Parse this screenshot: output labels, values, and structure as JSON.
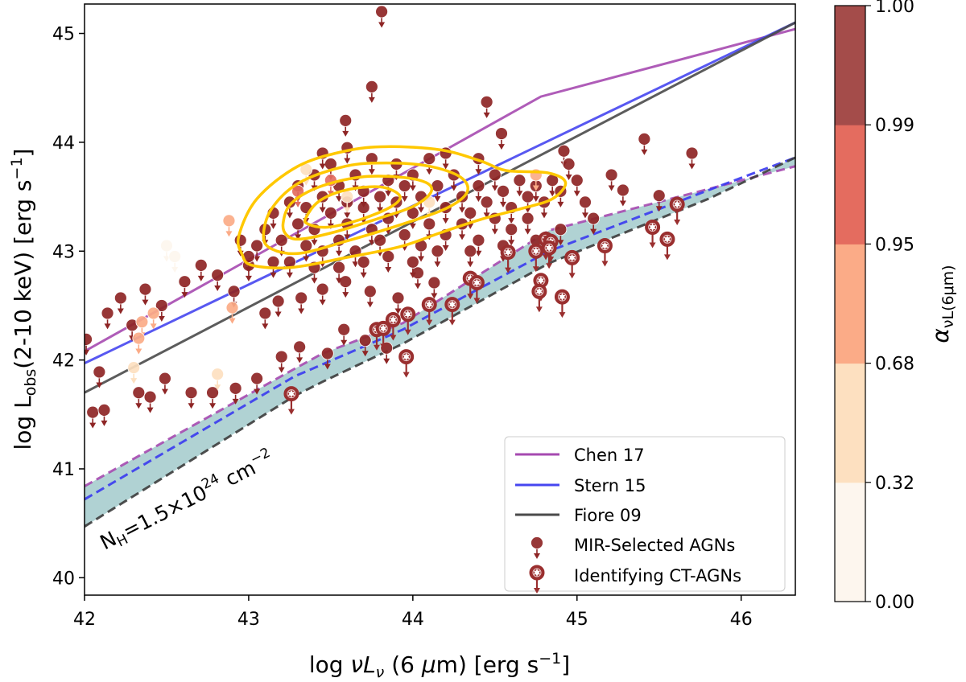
{
  "chart_data": {
    "type": "scatter",
    "xlabel": "log νLν (6 μm) [erg s⁻¹]",
    "ylabel": "log Lobs(2-10 keV) [erg s⁻¹]",
    "xlim": [
      42,
      46.33
    ],
    "ylim": [
      39.84,
      45.27
    ],
    "xticks": [
      "42",
      "43",
      "44",
      "45",
      "46"
    ],
    "yticks": [
      "40",
      "41",
      "42",
      "43",
      "44",
      "45"
    ],
    "grid": false,
    "legend_position": "bottom-right",
    "annotation": "NH=1.5×10²⁴ cm⁻²",
    "relations": [
      {
        "name": "Chen 17",
        "color": "#a64ab0",
        "points": [
          [
            42,
            42.08
          ],
          [
            44.78,
            44.42
          ],
          [
            46.33,
            45.04
          ]
        ]
      },
      {
        "name": "Stern 15",
        "color": "#4646f0",
        "points": [
          [
            42,
            41.97
          ],
          [
            46.33,
            45.1
          ]
        ]
      },
      {
        "name": "Fiore 09",
        "color": "#4a4a4a",
        "points": [
          [
            42,
            41.7
          ],
          [
            46.33,
            45.1
          ]
        ]
      }
    ],
    "ct_threshold_curves": [
      {
        "relation": "Chen 17",
        "color": "#a64ab0",
        "points": [
          [
            42,
            40.84
          ],
          [
            43.28,
            41.92
          ],
          [
            43.45,
            42.06
          ],
          [
            43.94,
            42.34
          ],
          [
            44.83,
            43.19
          ],
          [
            45.8,
            43.57
          ],
          [
            46.33,
            43.78
          ]
        ]
      },
      {
        "relation": "Stern 15",
        "color": "#3a3af0",
        "points": [
          [
            42,
            40.72
          ],
          [
            43.28,
            41.85
          ],
          [
            43.45,
            41.96
          ],
          [
            43.94,
            42.28
          ],
          [
            44.83,
            43.0
          ],
          [
            45.8,
            43.56
          ],
          [
            46.33,
            43.86
          ]
        ]
      },
      {
        "relation": "Fiore 09",
        "color": "#3c3c3c",
        "points": [
          [
            42,
            40.47
          ],
          [
            43.28,
            41.67
          ],
          [
            43.45,
            41.8
          ],
          [
            43.94,
            42.15
          ],
          [
            44.83,
            42.89
          ],
          [
            45.8,
            43.48
          ],
          [
            46.33,
            43.86
          ]
        ]
      }
    ],
    "band_color": "#b0d2d3",
    "contour_color": "#ffc800",
    "contours": [
      [
        [
          42.96,
          42.97
        ],
        [
          42.94,
          43.14
        ],
        [
          43.05,
          43.48
        ],
        [
          43.3,
          43.78
        ],
        [
          43.59,
          43.92
        ],
        [
          43.84,
          43.96
        ],
        [
          44.17,
          43.93
        ],
        [
          44.41,
          43.83
        ],
        [
          44.57,
          43.74
        ],
        [
          44.82,
          43.72
        ],
        [
          44.93,
          43.63
        ],
        [
          44.85,
          43.48
        ],
        [
          44.66,
          43.39
        ],
        [
          44.41,
          43.29
        ],
        [
          44.17,
          43.17
        ],
        [
          43.92,
          43.04
        ],
        [
          43.59,
          42.94
        ],
        [
          43.26,
          42.85
        ],
        [
          43.02,
          42.87
        ]
      ],
      [
        [
          43.09,
          43.14
        ],
        [
          43.14,
          43.39
        ],
        [
          43.31,
          43.63
        ],
        [
          43.59,
          43.78
        ],
        [
          43.84,
          43.81
        ],
        [
          44.1,
          43.78
        ],
        [
          44.29,
          43.68
        ],
        [
          44.33,
          43.54
        ],
        [
          44.2,
          43.39
        ],
        [
          43.92,
          43.24
        ],
        [
          43.59,
          43.09
        ],
        [
          43.31,
          42.98
        ],
        [
          43.14,
          43.02
        ]
      ],
      [
        [
          43.21,
          43.26
        ],
        [
          43.26,
          43.44
        ],
        [
          43.43,
          43.59
        ],
        [
          43.68,
          43.68
        ],
        [
          43.92,
          43.68
        ],
        [
          44.08,
          43.63
        ],
        [
          44.11,
          43.54
        ],
        [
          44.0,
          43.41
        ],
        [
          43.77,
          43.29
        ],
        [
          43.51,
          43.17
        ],
        [
          43.31,
          43.11
        ],
        [
          43.23,
          43.15
        ]
      ],
      [
        [
          43.35,
          43.31
        ],
        [
          43.43,
          43.46
        ],
        [
          43.59,
          43.56
        ],
        [
          43.8,
          43.59
        ],
        [
          43.92,
          43.51
        ],
        [
          43.87,
          43.41
        ],
        [
          43.68,
          43.29
        ],
        [
          43.48,
          43.22
        ],
        [
          43.36,
          43.25
        ]
      ]
    ],
    "colorbar": {
      "label": "α",
      "label_sub": "νL(6μm)",
      "ticks": [
        "0.00",
        "0.32",
        "0.68",
        "0.95",
        "0.99",
        "1.00"
      ],
      "colors": [
        "#fdf6ee",
        "#fde0c0",
        "#fbab87",
        "#e46c5f",
        "#a44c4a"
      ]
    },
    "mir_agns": {
      "name": "MIR-Selected AGNs",
      "upper_limits": true,
      "points_xy_bin": [
        [
          43.81,
          45.2,
          4
        ],
        [
          43.75,
          44.51,
          4
        ],
        [
          43.59,
          44.2,
          4
        ],
        [
          44.45,
          44.37,
          4
        ],
        [
          44.54,
          44.08,
          4
        ],
        [
          45.41,
          44.03,
          4
        ],
        [
          45.7,
          43.9,
          4
        ],
        [
          45.5,
          43.51,
          4
        ],
        [
          45.28,
          43.56,
          4
        ],
        [
          44.92,
          43.92,
          4
        ],
        [
          45.21,
          43.7,
          4
        ],
        [
          42.01,
          42.19,
          4
        ],
        [
          42.05,
          41.52,
          4
        ],
        [
          42.12,
          41.54,
          4
        ],
        [
          42.09,
          41.89,
          4
        ],
        [
          42.14,
          42.43,
          4
        ],
        [
          42.29,
          42.32,
          4
        ],
        [
          42.33,
          41.7,
          4
        ],
        [
          42.4,
          41.66,
          4
        ],
        [
          42.49,
          41.83,
          4
        ],
        [
          42.65,
          41.7,
          4
        ],
        [
          42.78,
          41.7,
          4
        ],
        [
          42.92,
          41.74,
          4
        ],
        [
          43.05,
          41.83,
          4
        ],
        [
          43.2,
          42.03,
          4
        ],
        [
          43.31,
          42.12,
          4
        ],
        [
          43.48,
          42.06,
          4
        ],
        [
          43.58,
          42.28,
          4
        ],
        [
          43.71,
          42.18,
          4
        ],
        [
          43.84,
          42.11,
          4
        ],
        [
          42.22,
          42.57,
          4
        ],
        [
          42.37,
          42.65,
          4
        ],
        [
          42.47,
          42.5,
          4
        ],
        [
          42.61,
          42.72,
          4
        ],
        [
          42.71,
          42.87,
          4
        ],
        [
          42.81,
          42.78,
          4
        ],
        [
          42.91,
          42.63,
          4
        ],
        [
          43.0,
          42.87,
          4
        ],
        [
          43.1,
          42.43,
          4
        ],
        [
          43.18,
          42.54,
          4
        ],
        [
          43.32,
          42.57,
          4
        ],
        [
          43.45,
          42.65,
          4
        ],
        [
          43.59,
          42.72,
          4
        ],
        [
          43.74,
          42.63,
          4
        ],
        [
          43.91,
          42.57,
          4
        ],
        [
          44.03,
          42.8,
          4
        ],
        [
          44.13,
          42.71,
          4
        ],
        [
          43.1,
          43.2,
          4
        ],
        [
          43.15,
          43.35,
          4
        ],
        [
          43.2,
          43.1,
          4
        ],
        [
          43.25,
          43.45,
          4
        ],
        [
          43.3,
          43.25,
          4
        ],
        [
          43.3,
          43.6,
          4
        ],
        [
          43.35,
          43.05,
          4
        ],
        [
          43.35,
          43.4,
          4
        ],
        [
          43.4,
          43.7,
          4
        ],
        [
          43.4,
          43.2,
          4
        ],
        [
          43.45,
          43.5,
          4
        ],
        [
          43.45,
          43.0,
          4
        ],
        [
          43.5,
          43.35,
          4
        ],
        [
          43.5,
          43.8,
          4
        ],
        [
          43.55,
          43.1,
          4
        ],
        [
          43.55,
          43.6,
          4
        ],
        [
          43.6,
          43.45,
          4
        ],
        [
          43.6,
          43.25,
          4
        ],
        [
          43.65,
          43.7,
          4
        ],
        [
          43.65,
          43.0,
          4
        ],
        [
          43.7,
          43.4,
          4
        ],
        [
          43.7,
          43.55,
          4
        ],
        [
          43.75,
          43.2,
          4
        ],
        [
          43.75,
          43.85,
          4
        ],
        [
          43.8,
          43.5,
          4
        ],
        [
          43.8,
          43.1,
          4
        ],
        [
          43.85,
          43.65,
          4
        ],
        [
          43.85,
          43.3,
          4
        ],
        [
          43.9,
          43.45,
          4
        ],
        [
          43.9,
          43.8,
          4
        ],
        [
          43.95,
          43.15,
          4
        ],
        [
          43.95,
          43.6,
          4
        ],
        [
          44.0,
          43.35,
          4
        ],
        [
          44.0,
          43.7,
          4
        ],
        [
          44.05,
          43.5,
          4
        ],
        [
          44.05,
          43.05,
          4
        ],
        [
          44.1,
          43.25,
          4
        ],
        [
          44.1,
          43.85,
          4
        ],
        [
          44.15,
          43.6,
          4
        ],
        [
          44.2,
          43.4,
          4
        ],
        [
          44.2,
          43.15,
          4
        ],
        [
          44.25,
          43.7,
          4
        ],
        [
          44.3,
          43.5,
          4
        ],
        [
          44.3,
          43.25,
          4
        ],
        [
          44.35,
          43.35,
          4
        ],
        [
          44.4,
          43.6,
          4
        ],
        [
          44.4,
          43.1,
          4
        ],
        [
          44.45,
          43.45,
          4
        ],
        [
          44.5,
          43.3,
          4
        ],
        [
          44.5,
          43.7,
          4
        ],
        [
          44.55,
          43.55,
          4
        ],
        [
          44.6,
          43.4,
          4
        ],
        [
          44.6,
          43.2,
          4
        ],
        [
          44.65,
          43.65,
          4
        ],
        [
          44.7,
          43.5,
          4
        ],
        [
          44.7,
          43.3,
          4
        ],
        [
          44.75,
          43.6,
          4
        ],
        [
          44.8,
          43.45,
          4
        ],
        [
          44.85,
          43.65,
          4
        ],
        [
          44.9,
          43.55,
          4
        ],
        [
          43.05,
          43.05,
          4
        ],
        [
          43.0,
          42.95,
          4
        ],
        [
          42.95,
          43.1,
          4
        ],
        [
          43.15,
          42.9,
          4
        ],
        [
          43.25,
          42.9,
          4
        ],
        [
          43.4,
          42.85,
          4
        ],
        [
          43.55,
          42.85,
          4
        ],
        [
          43.7,
          42.9,
          4
        ],
        [
          43.85,
          42.95,
          4
        ],
        [
          44.0,
          42.9,
          4
        ],
        [
          44.15,
          43.0,
          4
        ],
        [
          44.35,
          43.0,
          4
        ],
        [
          44.55,
          43.05,
          4
        ],
        [
          44.75,
          43.1,
          4
        ],
        [
          44.9,
          43.2,
          4
        ],
        [
          45.0,
          43.65,
          4
        ],
        [
          45.05,
          43.45,
          4
        ],
        [
          45.1,
          43.3,
          4
        ],
        [
          44.95,
          43.8,
          4
        ],
        [
          43.45,
          43.9,
          4
        ],
        [
          43.6,
          43.95,
          4
        ],
        [
          44.2,
          43.9,
          4
        ],
        [
          44.4,
          43.85,
          4
        ],
        [
          42.5,
          43.05,
          0
        ],
        [
          42.55,
          42.95,
          0
        ],
        [
          42.35,
          42.35,
          2
        ],
        [
          42.33,
          42.2,
          2
        ],
        [
          42.42,
          42.43,
          2
        ],
        [
          42.81,
          41.87,
          1
        ],
        [
          42.88,
          43.28,
          2
        ],
        [
          43.6,
          43.5,
          1
        ],
        [
          44.1,
          43.45,
          1
        ],
        [
          44.75,
          43.7,
          2
        ],
        [
          43.35,
          43.75,
          1
        ],
        [
          43.3,
          43.55,
          3
        ],
        [
          43.5,
          43.65,
          3
        ],
        [
          42.9,
          42.48,
          2
        ],
        [
          42.3,
          41.93,
          1
        ]
      ]
    },
    "ct_agns": {
      "name": "Identifying CT-AGNs",
      "upper_limits": true,
      "points": [
        [
          43.26,
          41.69
        ],
        [
          43.78,
          42.28
        ],
        [
          43.82,
          42.29
        ],
        [
          43.88,
          42.37
        ],
        [
          43.97,
          42.42
        ],
        [
          43.96,
          42.03
        ],
        [
          44.1,
          42.51
        ],
        [
          44.24,
          42.51
        ],
        [
          44.35,
          42.75
        ],
        [
          44.39,
          42.71
        ],
        [
          44.58,
          42.99
        ],
        [
          44.75,
          43.0
        ],
        [
          44.81,
          43.11
        ],
        [
          44.84,
          43.09
        ],
        [
          44.83,
          43.03
        ],
        [
          44.78,
          42.73
        ],
        [
          44.77,
          42.63
        ],
        [
          44.91,
          42.58
        ],
        [
          44.97,
          42.94
        ],
        [
          45.17,
          43.05
        ],
        [
          45.46,
          43.22
        ],
        [
          45.55,
          43.11
        ],
        [
          45.61,
          43.43
        ]
      ]
    }
  },
  "legend": {
    "items": [
      "Chen 17",
      "Stern 15",
      "Fiore 09",
      "MIR-Selected AGNs",
      "Identifying CT-AGNs"
    ]
  },
  "labels": {
    "xlabel_pre": "log ",
    "xlabel_nu": "νL",
    "xlabel_sub": "ν",
    "xlabel_post": " (6 ",
    "xlabel_mu": "μ",
    "xlabel_end": "m) [erg s",
    "xlabel_exp": "−1",
    "xlabel_close": "]",
    "ylabel_pre": "log L",
    "ylabel_sub": "obs",
    "ylabel_post": "(2-10 keV) [erg s",
    "ylabel_exp": "−1",
    "ylabel_close": "]",
    "ann_n": "N",
    "ann_h": "H",
    "ann_mid": "=1.5×10",
    "ann_exp": "24",
    "ann_cm": " cm",
    "ann_exp2": "−2"
  }
}
